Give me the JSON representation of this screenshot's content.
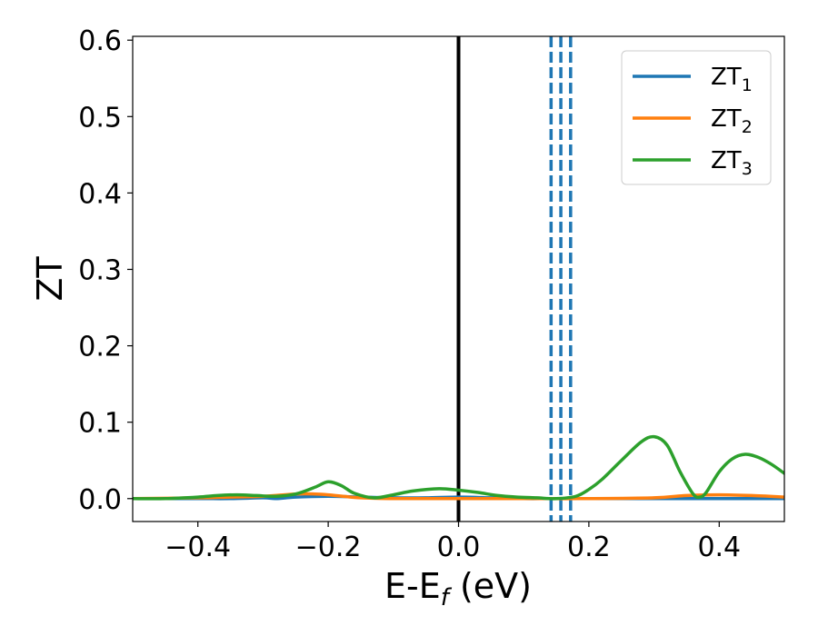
{
  "chart_data": {
    "type": "line",
    "xlabel_main": "E-E",
    "xlabel_sub": "f",
    "xlabel_unit": " (eV)",
    "ylabel": "ZT",
    "xlim": [
      -0.5,
      0.5
    ],
    "ylim": [
      -0.03,
      0.605
    ],
    "xticks": [
      -0.4,
      -0.2,
      0.0,
      0.2,
      0.4
    ],
    "xtick_labels": [
      "−0.4",
      "−0.2",
      "0.0",
      "0.2",
      "0.4"
    ],
    "yticks": [
      0.0,
      0.1,
      0.2,
      0.3,
      0.4,
      0.5,
      0.6
    ],
    "ytick_labels": [
      "0.0",
      "0.1",
      "0.2",
      "0.3",
      "0.4",
      "0.5",
      "0.6"
    ],
    "grid": false,
    "legend_position": "top-right",
    "reference_lines": [
      {
        "x": 0.0,
        "color": "#000000",
        "style": "solid"
      },
      {
        "x": 0.142,
        "color": "#1f77b4",
        "style": "dashed"
      },
      {
        "x": 0.157,
        "color": "#1f77b4",
        "style": "dashed"
      },
      {
        "x": 0.172,
        "color": "#1f77b4",
        "style": "dashed"
      }
    ],
    "series": [
      {
        "name_main": "ZT",
        "name_sub": "1",
        "color": "#1f77b4",
        "x": [
          -0.5,
          -0.4,
          -0.35,
          -0.3,
          -0.28,
          -0.25,
          -0.2,
          -0.15,
          -0.1,
          -0.05,
          0.0,
          0.05,
          0.1,
          0.14,
          0.2,
          0.3,
          0.4,
          0.5
        ],
        "y": [
          0.0,
          0.0,
          0.0,
          0.001,
          0.0,
          0.002,
          0.003,
          0.002,
          0.001,
          0.001,
          0.002,
          0.001,
          0.0,
          0.0,
          0.0,
          0.0,
          0.0,
          0.0
        ]
      },
      {
        "name_main": "ZT",
        "name_sub": "2",
        "color": "#ff7f0e",
        "x": [
          -0.5,
          -0.4,
          -0.35,
          -0.3,
          -0.25,
          -0.22,
          -0.2,
          -0.15,
          -0.1,
          0.0,
          0.1,
          0.2,
          0.3,
          0.35,
          0.4,
          0.45,
          0.5
        ],
        "y": [
          0.0,
          0.001,
          0.002,
          0.003,
          0.006,
          0.006,
          0.005,
          0.001,
          0.0,
          0.0,
          0.0,
          0.0,
          0.001,
          0.004,
          0.005,
          0.004,
          0.002
        ]
      },
      {
        "name_main": "ZT",
        "name_sub": "3",
        "color": "#2ca02c",
        "x": [
          -0.5,
          -0.45,
          -0.4,
          -0.37,
          -0.34,
          -0.31,
          -0.28,
          -0.25,
          -0.22,
          -0.2,
          -0.18,
          -0.16,
          -0.13,
          -0.1,
          -0.07,
          -0.03,
          0.0,
          0.03,
          0.06,
          0.09,
          0.12,
          0.15,
          0.18,
          0.2,
          0.22,
          0.25,
          0.28,
          0.3,
          0.32,
          0.34,
          0.36,
          0.37,
          0.38,
          0.4,
          0.42,
          0.44,
          0.46,
          0.48,
          0.5
        ],
        "y": [
          0.0,
          0.0,
          0.002,
          0.004,
          0.005,
          0.004,
          0.003,
          0.006,
          0.015,
          0.022,
          0.017,
          0.007,
          0.001,
          0.005,
          0.01,
          0.013,
          0.011,
          0.008,
          0.004,
          0.002,
          0.001,
          0.0,
          0.003,
          0.012,
          0.025,
          0.05,
          0.074,
          0.081,
          0.07,
          0.035,
          0.006,
          0.002,
          0.008,
          0.035,
          0.052,
          0.058,
          0.054,
          0.045,
          0.033
        ]
      }
    ]
  }
}
